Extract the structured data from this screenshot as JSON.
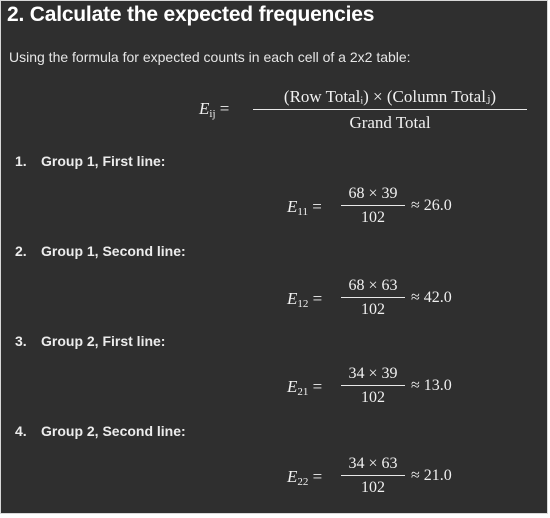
{
  "heading": "2. Calculate the expected frequencies",
  "intro": "Using the formula for expected counts in each cell of a 2x2 table:",
  "formula": {
    "lhs_var": "E",
    "lhs_sub": "ij",
    "equals": "=",
    "numerator": "(Row Totalᵢ) × (Column Totalⱼ)",
    "denominator": "Grand Total"
  },
  "steps": [
    {
      "number": "1.",
      "label": "Group 1, First line:",
      "var": "E",
      "sub": "11",
      "numerator": "68 × 39",
      "denominator": "102",
      "result": "≈ 26.0"
    },
    {
      "number": "2.",
      "label": "Group 1, Second line:",
      "var": "E",
      "sub": "12",
      "numerator": "68 × 63",
      "denominator": "102",
      "result": "≈ 42.0"
    },
    {
      "number": "3.",
      "label": "Group 2, First line:",
      "var": "E",
      "sub": "21",
      "numerator": "34 × 39",
      "denominator": "102",
      "result": "≈ 13.0"
    },
    {
      "number": "4.",
      "label": "Group 2, Second line:",
      "var": "E",
      "sub": "22",
      "numerator": "34 × 63",
      "denominator": "102",
      "result": "≈ 21.0"
    }
  ]
}
